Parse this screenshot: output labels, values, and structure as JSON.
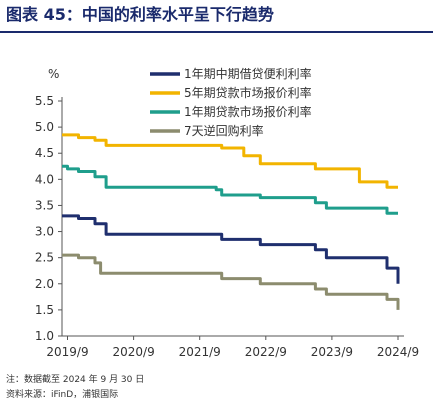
{
  "title": "图表 45：中国的利率水平呈下行趋势",
  "notes": {
    "line1": "注：数据截至 2024 年 9 月 30 日",
    "line2": "资料来源：iFinD，浦银国际"
  },
  "chart_data": {
    "type": "line",
    "ylabel": "%",
    "ylim": [
      1.0,
      5.5
    ],
    "yticks": [
      "1.0",
      "1.5",
      "2.0",
      "2.5",
      "3.0",
      "3.5",
      "4.0",
      "4.5",
      "5.0",
      "5.5"
    ],
    "xlim": [
      "2019/8",
      "2024/9"
    ],
    "xticks": [
      "2019/9",
      "2020/9",
      "2021/9",
      "2022/9",
      "2023/9",
      "2024/9"
    ],
    "grid": false,
    "legend_position": "top-right",
    "series": [
      {
        "name": "1年期中期借贷便利利率",
        "color": "#1f2f6e",
        "points": [
          [
            "2019/8",
            3.3
          ],
          [
            "2019/11",
            3.25
          ],
          [
            "2020/2",
            3.15
          ],
          [
            "2020/4",
            2.95
          ],
          [
            "2022/1",
            2.85
          ],
          [
            "2022/8",
            2.75
          ],
          [
            "2023/6",
            2.65
          ],
          [
            "2023/8",
            2.5
          ],
          [
            "2024/7",
            2.3
          ],
          [
            "2024/9",
            2.0
          ]
        ]
      },
      {
        "name": "5年期贷款市场报价利率",
        "color": "#f2b400",
        "points": [
          [
            "2019/8",
            4.85
          ],
          [
            "2019/11",
            4.8
          ],
          [
            "2020/2",
            4.75
          ],
          [
            "2020/4",
            4.65
          ],
          [
            "2022/1",
            4.6
          ],
          [
            "2022/5",
            4.45
          ],
          [
            "2022/8",
            4.3
          ],
          [
            "2023/6",
            4.2
          ],
          [
            "2024/2",
            3.95
          ],
          [
            "2024/7",
            3.85
          ],
          [
            "2024/9",
            3.85
          ]
        ]
      },
      {
        "name": "1年期贷款市场报价利率",
        "color": "#1f9e8c",
        "points": [
          [
            "2019/8",
            4.25
          ],
          [
            "2019/9",
            4.2
          ],
          [
            "2019/11",
            4.15
          ],
          [
            "2020/2",
            4.05
          ],
          [
            "2020/4",
            3.85
          ],
          [
            "2021/12",
            3.8
          ],
          [
            "2022/1",
            3.7
          ],
          [
            "2022/8",
            3.65
          ],
          [
            "2023/6",
            3.55
          ],
          [
            "2023/8",
            3.45
          ],
          [
            "2024/7",
            3.35
          ],
          [
            "2024/9",
            3.35
          ]
        ]
      },
      {
        "name": "7天逆回购利率",
        "color": "#8c8c6e",
        "points": [
          [
            "2019/8",
            2.55
          ],
          [
            "2019/11",
            2.5
          ],
          [
            "2020/2",
            2.4
          ],
          [
            "2020/3",
            2.2
          ],
          [
            "2022/1",
            2.1
          ],
          [
            "2022/8",
            2.0
          ],
          [
            "2023/6",
            1.9
          ],
          [
            "2023/8",
            1.8
          ],
          [
            "2024/7",
            1.7
          ],
          [
            "2024/9",
            1.5
          ]
        ]
      }
    ]
  }
}
